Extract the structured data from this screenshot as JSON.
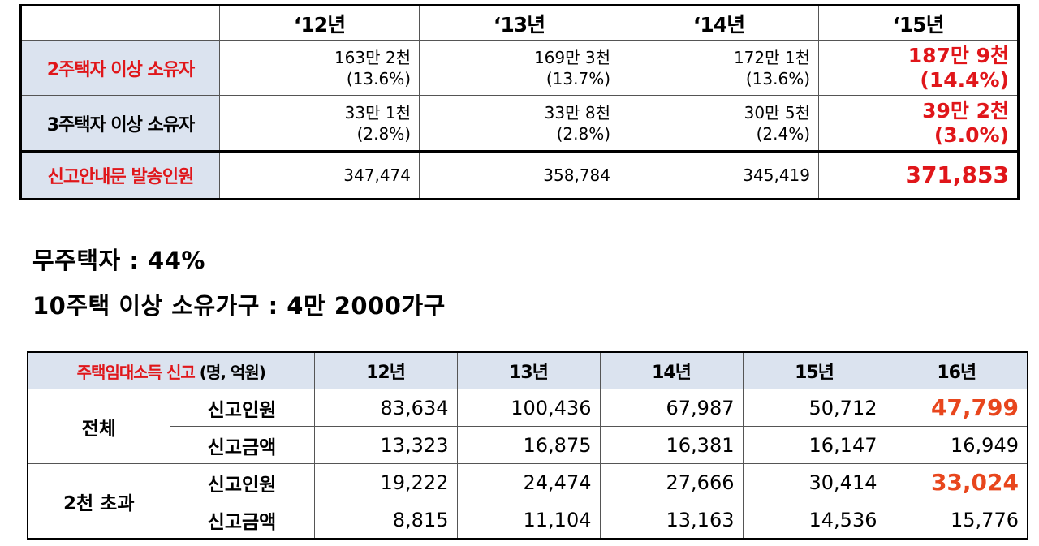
{
  "top_table": {
    "years": [
      "‘12년",
      "‘13년",
      "‘14년",
      "‘15년"
    ],
    "rows": [
      {
        "label": "2주택자 이상 소유자",
        "cells": [
          {
            "line1": "163만 2천",
            "line2": "(13.6%)"
          },
          {
            "line1": "169만 3천",
            "line2": "(13.7%)"
          },
          {
            "line1": "172만 1천",
            "line2": "(13.6%)"
          },
          {
            "line1": "187만 9천",
            "line2": "(14.4%)"
          }
        ]
      },
      {
        "label": "3주택자 이상 소유자",
        "cells": [
          {
            "line1": "33만 1천",
            "line2": "(2.8%)"
          },
          {
            "line1": "33만 8천",
            "line2": "(2.8%)"
          },
          {
            "line1": "30만 5천",
            "line2": "(2.4%)"
          },
          {
            "line1": "39만 2천",
            "line2": "(3.0%)"
          }
        ]
      },
      {
        "label": "신고안내문 발송인원",
        "cells": [
          "347,474",
          "358,784",
          "345,419",
          "371,853"
        ]
      }
    ]
  },
  "stats": {
    "line1": "무주택자 : 44%",
    "line2": "10주택 이상 소유가구 : 4만 2000가구"
  },
  "bottom_table": {
    "caption_main": "주택임대소득 신고",
    "caption_unit": " (명, 억원)",
    "years": [
      "12년",
      "13년",
      "14년",
      "15년",
      "16년"
    ],
    "groups": [
      {
        "label": "전체",
        "rows": [
          {
            "metric": "신고인원",
            "values": [
              "83,634",
              "100,436",
              "67,987",
              "50,712",
              "47,799"
            ]
          },
          {
            "metric": "신고금액",
            "values": [
              "13,323",
              "16,875",
              "16,381",
              "16,147",
              "16,949"
            ]
          }
        ]
      },
      {
        "label": "2천 초과",
        "rows": [
          {
            "metric": "신고인원",
            "values": [
              "19,222",
              "24,474",
              "27,666",
              "30,414",
              "33,024"
            ]
          },
          {
            "metric": "신고금액",
            "values": [
              "8,815",
              "11,104",
              "13,163",
              "14,536",
              "15,776"
            ]
          }
        ]
      }
    ]
  },
  "colors": {
    "header_fill": "#dbe3ef",
    "highlight_red": "#e0161a",
    "highlight_orange": "#e8461d"
  }
}
